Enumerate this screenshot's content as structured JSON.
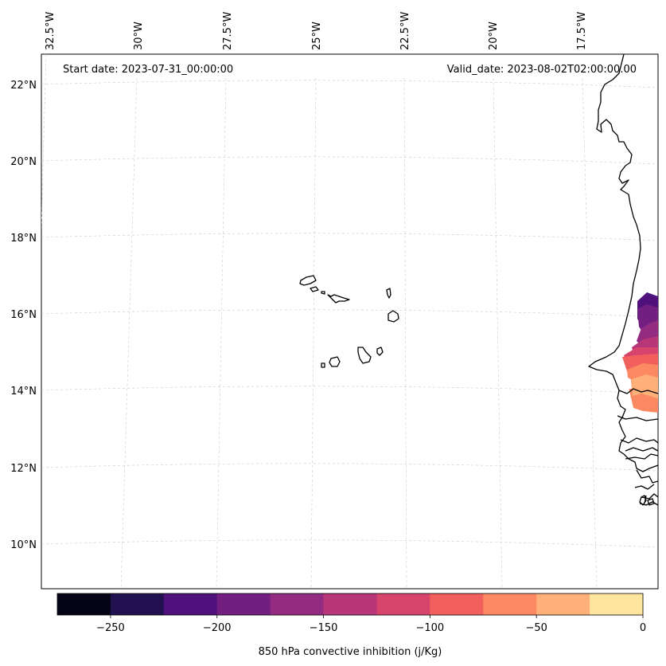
{
  "map": {
    "start_date": "Start date: 2023-07-31_00:00:00",
    "valid_date": "Valid_date: 2023-08-02T02:00:00.00",
    "lon_labels": [
      "32.5°W",
      "30°W",
      "27.5°W",
      "25°W",
      "22.5°W",
      "20°W",
      "17.5°W"
    ],
    "lat_labels": [
      "22°N",
      "20°N",
      "18°N",
      "16°N",
      "14°N",
      "12°N",
      "10°N"
    ],
    "features": [
      "Cabo Verde islands",
      "West African coastline"
    ],
    "field_extent": "Senegal coast, approx. 13.5°N–16.5°N near 16.5°W–16°W"
  },
  "colorbar": {
    "label": "850 hPa convective inhibition (j/Kg)",
    "ticks": [
      "−250",
      "−200",
      "−150",
      "−100",
      "−50",
      "0"
    ],
    "min": -275,
    "max": 0,
    "levels": [
      -275,
      -250,
      -225,
      -200,
      -175,
      -150,
      -125,
      -100,
      -75,
      -50,
      -25,
      0
    ],
    "colors": [
      "#050417",
      "#221150",
      "#4f117b",
      "#721f81",
      "#932b80",
      "#b73779",
      "#d8456c",
      "#f1605d",
      "#fc8961",
      "#feb078",
      "#fee49d"
    ]
  }
}
